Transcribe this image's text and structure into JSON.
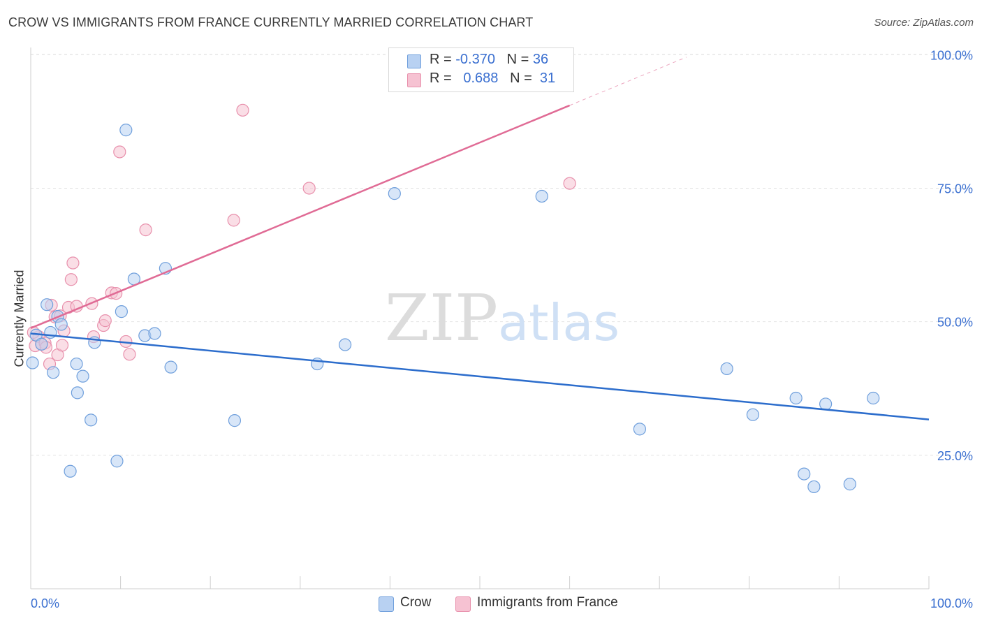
{
  "header": {
    "title": "CROW VS IMMIGRANTS FROM FRANCE CURRENTLY MARRIED CORRELATION CHART",
    "source": "Source: ZipAtlas.com"
  },
  "watermark": {
    "zip": "ZIP",
    "atlas": "atlas"
  },
  "legend": {
    "series0": {
      "r_label": "R =",
      "r_value": "-0.370",
      "n_label": "N =",
      "n_value": "36"
    },
    "series1": {
      "r_label": "R =",
      "r_value": "0.688",
      "n_label": "N =",
      "n_value": "31"
    }
  },
  "colors": {
    "crow_fill": "#b8d1f2",
    "crow_stroke": "#6f9fdc",
    "crow_line": "#2c6dcc",
    "france_fill": "#f6c2d2",
    "france_stroke": "#e890ac",
    "france_line": "#e06b95",
    "axis_text": "#3a6fd0",
    "grid": "#e2e2e2"
  },
  "chart_data": {
    "type": "scatter",
    "title": "CROW VS IMMIGRANTS FROM FRANCE CURRENTLY MARRIED CORRELATION CHART",
    "xlabel": "",
    "ylabel": "Currently Married",
    "xlim": [
      0,
      100
    ],
    "ylim": [
      0,
      102
    ],
    "x_tick_labels": [
      "0.0%",
      "100.0%"
    ],
    "y_ticks": [
      {
        "value": 25,
        "label": "25.0%"
      },
      {
        "value": 50,
        "label": "50.0%"
      },
      {
        "value": 75,
        "label": "75.0%"
      },
      {
        "value": 100,
        "label": "100.0%"
      }
    ],
    "grid": true,
    "series": [
      {
        "name": "Crow",
        "R": -0.37,
        "N": 36,
        "trend": {
          "x0": 0,
          "y0": 47.8,
          "x1": 100,
          "y1": 31.7
        },
        "points": [
          {
            "x": 0.2,
            "y": 42.3
          },
          {
            "x": 0.6,
            "y": 47.5
          },
          {
            "x": 1.8,
            "y": 53.2
          },
          {
            "x": 2.2,
            "y": 48.0
          },
          {
            "x": 2.5,
            "y": 40.5
          },
          {
            "x": 3.0,
            "y": 51.0
          },
          {
            "x": 3.4,
            "y": 49.5
          },
          {
            "x": 4.4,
            "y": 22.0
          },
          {
            "x": 5.1,
            "y": 42.1
          },
          {
            "x": 5.2,
            "y": 36.7
          },
          {
            "x": 5.8,
            "y": 39.8
          },
          {
            "x": 6.7,
            "y": 31.6
          },
          {
            "x": 7.1,
            "y": 46.1
          },
          {
            "x": 9.6,
            "y": 23.9
          },
          {
            "x": 10.1,
            "y": 51.9
          },
          {
            "x": 10.6,
            "y": 85.9
          },
          {
            "x": 11.5,
            "y": 58.0
          },
          {
            "x": 12.7,
            "y": 47.4
          },
          {
            "x": 13.8,
            "y": 47.8
          },
          {
            "x": 15.0,
            "y": 60.0
          },
          {
            "x": 15.6,
            "y": 41.5
          },
          {
            "x": 22.7,
            "y": 31.5
          },
          {
            "x": 31.9,
            "y": 42.1
          },
          {
            "x": 35.0,
            "y": 45.7
          },
          {
            "x": 40.5,
            "y": 74.0
          },
          {
            "x": 56.9,
            "y": 73.5
          },
          {
            "x": 67.8,
            "y": 29.9
          },
          {
            "x": 77.5,
            "y": 41.2
          },
          {
            "x": 80.4,
            "y": 32.6
          },
          {
            "x": 85.2,
            "y": 35.7
          },
          {
            "x": 86.1,
            "y": 21.5
          },
          {
            "x": 87.2,
            "y": 19.1
          },
          {
            "x": 88.5,
            "y": 34.6
          },
          {
            "x": 91.2,
            "y": 19.6
          },
          {
            "x": 93.8,
            "y": 35.7
          },
          {
            "x": 1.2,
            "y": 45.8
          }
        ]
      },
      {
        "name": "Immigrants from France",
        "R": 0.688,
        "N": 31,
        "trend": {
          "x0": 0,
          "y0": 48.8,
          "x1": 60,
          "y1": 90.5,
          "dashed_to_x": 73
        },
        "points": [
          {
            "x": 0.5,
            "y": 45.5
          },
          {
            "x": 0.9,
            "y": 47.2
          },
          {
            "x": 1.2,
            "y": 45.8
          },
          {
            "x": 1.6,
            "y": 46.0
          },
          {
            "x": 1.7,
            "y": 45.2
          },
          {
            "x": 2.1,
            "y": 42.1
          },
          {
            "x": 2.3,
            "y": 53.1
          },
          {
            "x": 2.7,
            "y": 50.9
          },
          {
            "x": 3.0,
            "y": 43.8
          },
          {
            "x": 3.3,
            "y": 51.1
          },
          {
            "x": 3.5,
            "y": 45.6
          },
          {
            "x": 3.7,
            "y": 48.3
          },
          {
            "x": 4.2,
            "y": 52.7
          },
          {
            "x": 4.5,
            "y": 57.9
          },
          {
            "x": 4.7,
            "y": 61.0
          },
          {
            "x": 5.1,
            "y": 52.9
          },
          {
            "x": 6.8,
            "y": 53.4
          },
          {
            "x": 7.0,
            "y": 47.2
          },
          {
            "x": 8.1,
            "y": 49.3
          },
          {
            "x": 8.3,
            "y": 50.2
          },
          {
            "x": 9.0,
            "y": 55.4
          },
          {
            "x": 9.5,
            "y": 55.3
          },
          {
            "x": 9.9,
            "y": 81.8
          },
          {
            "x": 10.6,
            "y": 46.3
          },
          {
            "x": 11.0,
            "y": 43.9
          },
          {
            "x": 12.8,
            "y": 67.2
          },
          {
            "x": 22.6,
            "y": 69.0
          },
          {
            "x": 23.6,
            "y": 89.6
          },
          {
            "x": 31.0,
            "y": 75.0
          },
          {
            "x": 60.0,
            "y": 75.9
          },
          {
            "x": 0.3,
            "y": 48.0
          }
        ]
      }
    ]
  },
  "bottom_legend": {
    "crow": "Crow",
    "france": "Immigrants from France"
  }
}
